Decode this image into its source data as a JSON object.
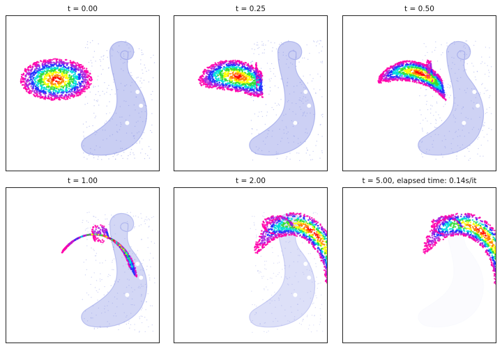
{
  "chart_data": {
    "type": "scatter",
    "description_note": "",
    "panels": [
      {
        "title": "t = 0.00",
        "t": 0.0
      },
      {
        "title": "t = 0.25",
        "t": 0.25
      },
      {
        "title": "t = 0.50",
        "t": 0.5
      },
      {
        "title": "t = 1.00",
        "t": 1.0
      },
      {
        "title": "t = 2.00",
        "t": 2.0
      },
      {
        "title": "t = 5.00, elapsed time: 0.14s/it",
        "t": 5.0
      }
    ],
    "target_color": "#8c96e6",
    "source_colormap": [
      "#ff0000",
      "#ff7f00",
      "#ffff00",
      "#33dd33",
      "#00dddd",
      "#2233ff",
      "#aa22dd",
      "#ff00aa"
    ],
    "axes": false,
    "grid": false
  }
}
